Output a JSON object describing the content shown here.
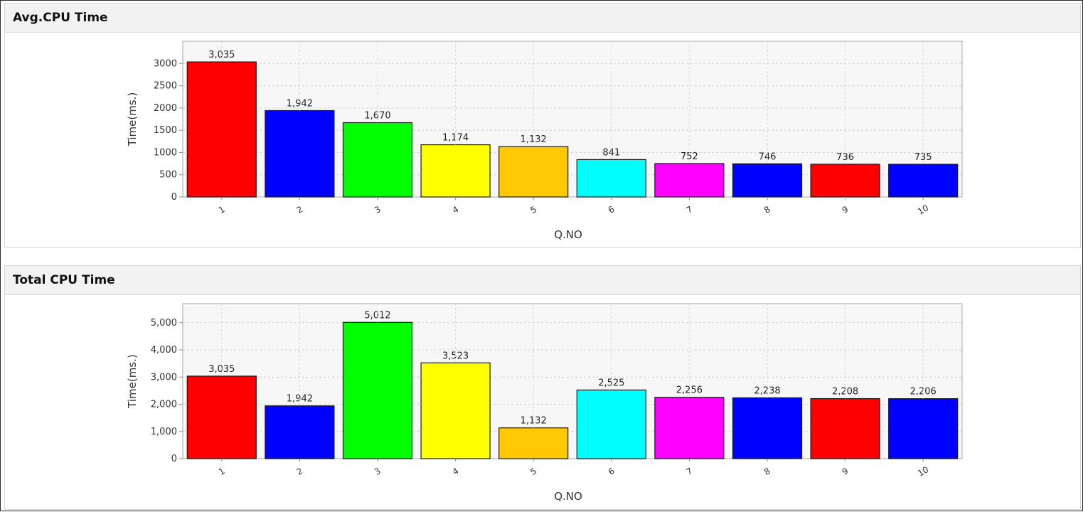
{
  "panels": [
    {
      "title": "Avg.CPU Time"
    },
    {
      "title": "Total CPU Time"
    }
  ],
  "chart_data": [
    {
      "type": "bar",
      "title": "Avg.CPU Time",
      "xlabel": "Q.NO",
      "ylabel": "Time(ms.)",
      "categories": [
        "1",
        "2",
        "3",
        "4",
        "5",
        "6",
        "7",
        "8",
        "9",
        "10"
      ],
      "values": [
        3035,
        1942,
        1670,
        1174,
        1132,
        841,
        752,
        746,
        736,
        735
      ],
      "value_labels": [
        "3,035",
        "1,942",
        "1,670",
        "1,174",
        "1,132",
        "841",
        "752",
        "746",
        "736",
        "735"
      ],
      "colors": [
        "#ff0000",
        "#0000ff",
        "#00ff00",
        "#ffff00",
        "#ffc800",
        "#00ffff",
        "#ff00ff",
        "#0000ff",
        "#ff0000",
        "#0000ff"
      ],
      "yticks": [
        0,
        500,
        1000,
        1500,
        2000,
        2500,
        3000
      ],
      "ytick_labels": [
        "0",
        "500",
        "1000",
        "1500",
        "2000",
        "2500",
        "3000"
      ],
      "ylim": [
        0,
        3500
      ],
      "grid": true
    },
    {
      "type": "bar",
      "title": "Total CPU Time",
      "xlabel": "Q.NO",
      "ylabel": "Time(ms.)",
      "categories": [
        "1",
        "2",
        "3",
        "4",
        "5",
        "6",
        "7",
        "8",
        "9",
        "10"
      ],
      "values": [
        3035,
        1942,
        5012,
        3523,
        1132,
        2525,
        2256,
        2238,
        2208,
        2206
      ],
      "value_labels": [
        "3,035",
        "1,942",
        "5,012",
        "3,523",
        "1,132",
        "2,525",
        "2,256",
        "2,238",
        "2,208",
        "2,206"
      ],
      "colors": [
        "#ff0000",
        "#0000ff",
        "#00ff00",
        "#ffff00",
        "#ffc800",
        "#00ffff",
        "#ff00ff",
        "#0000ff",
        "#ff0000",
        "#0000ff"
      ],
      "yticks": [
        0,
        1000,
        2000,
        3000,
        4000,
        5000
      ],
      "ytick_labels": [
        "0",
        "1,000",
        "2,000",
        "3,000",
        "4,000",
        "5,000"
      ],
      "ylim": [
        0,
        5700
      ],
      "grid": true
    }
  ]
}
